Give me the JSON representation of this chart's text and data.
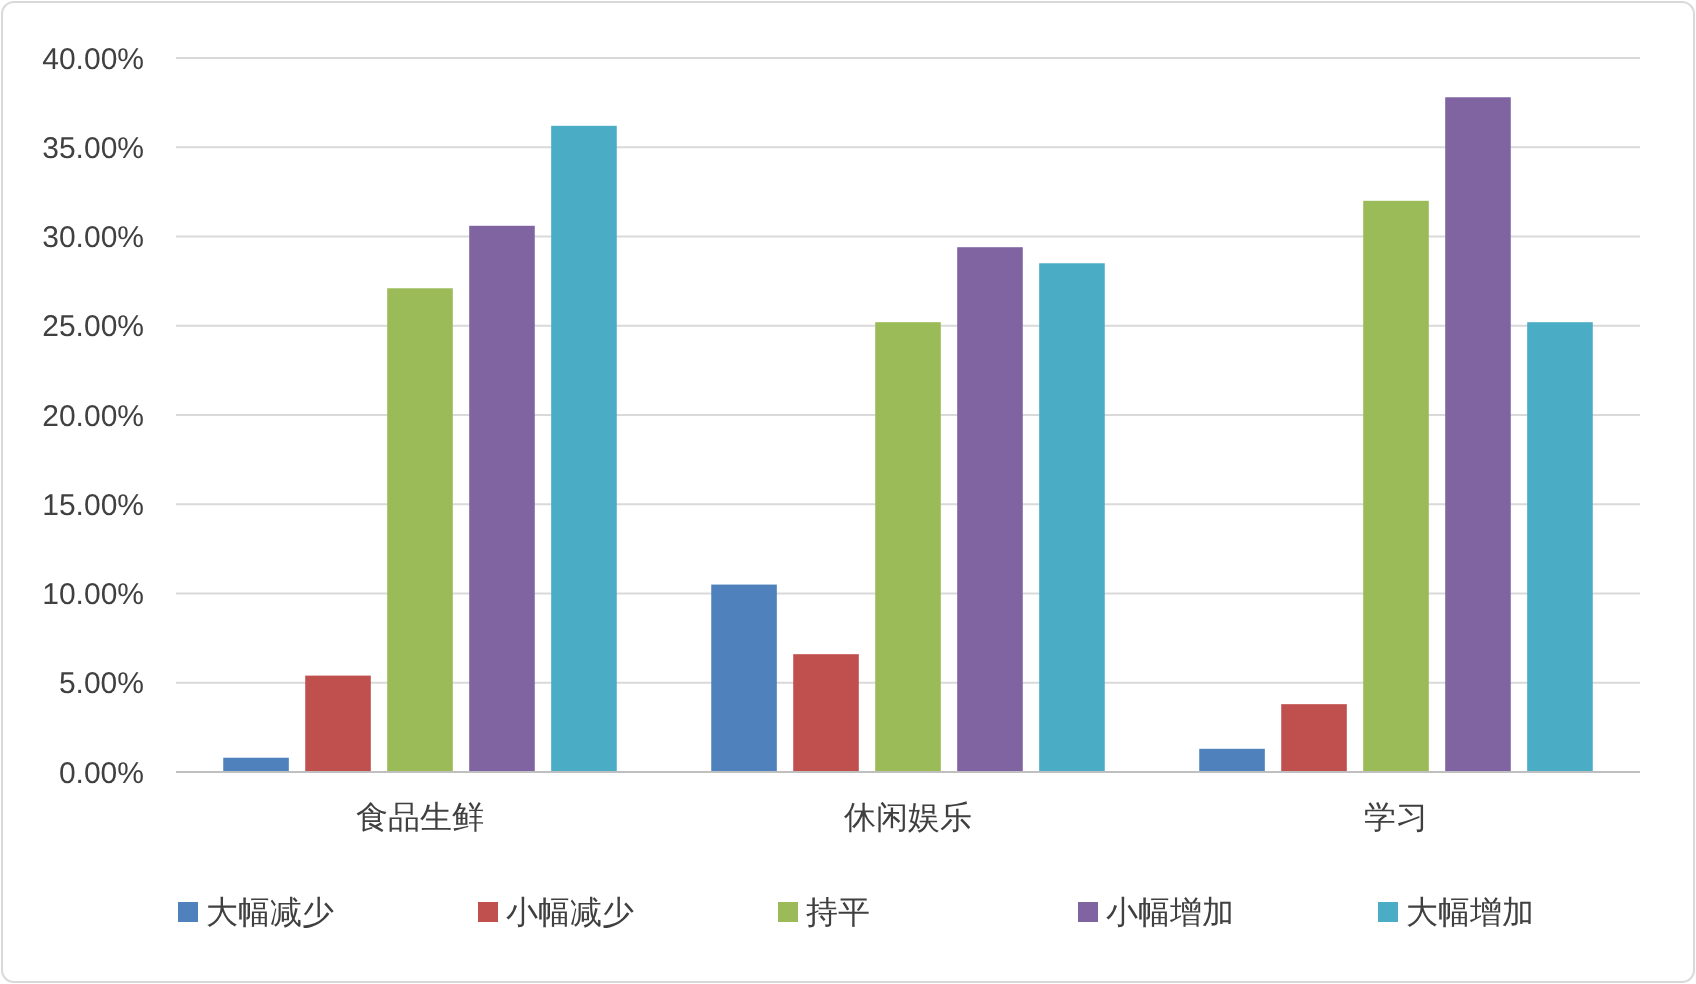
{
  "chart_data": {
    "type": "bar",
    "categories": [
      "食品生鲜",
      "休闲娱乐",
      "学习"
    ],
    "series": [
      {
        "name": "大幅减少",
        "color": "#4f81bd",
        "values": [
          0.8,
          10.5,
          1.3
        ]
      },
      {
        "name": "小幅减少",
        "color": "#c0504d",
        "values": [
          5.4,
          6.6,
          3.8
        ]
      },
      {
        "name": "持平",
        "color": "#9bbb59",
        "values": [
          27.1,
          25.2,
          32.0
        ]
      },
      {
        "name": "小幅增加",
        "color": "#8064a2",
        "values": [
          30.6,
          29.4,
          37.8
        ]
      },
      {
        "name": "大幅增加",
        "color": "#4bacc6",
        "values": [
          36.2,
          28.5,
          25.2
        ]
      }
    ],
    "ylim": [
      0,
      40
    ],
    "yticks": [
      {
        "value": 0,
        "label": "0.00%"
      },
      {
        "value": 5,
        "label": "5.00%"
      },
      {
        "value": 10,
        "label": "10.00%"
      },
      {
        "value": 15,
        "label": "15.00%"
      },
      {
        "value": 20,
        "label": "20.00%"
      },
      {
        "value": 25,
        "label": "25.00%"
      },
      {
        "value": 30,
        "label": "30.00%"
      },
      {
        "value": 35,
        "label": "35.00%"
      },
      {
        "value": 40,
        "label": "40.00%"
      }
    ],
    "grid": "y",
    "legend": "bottom"
  }
}
